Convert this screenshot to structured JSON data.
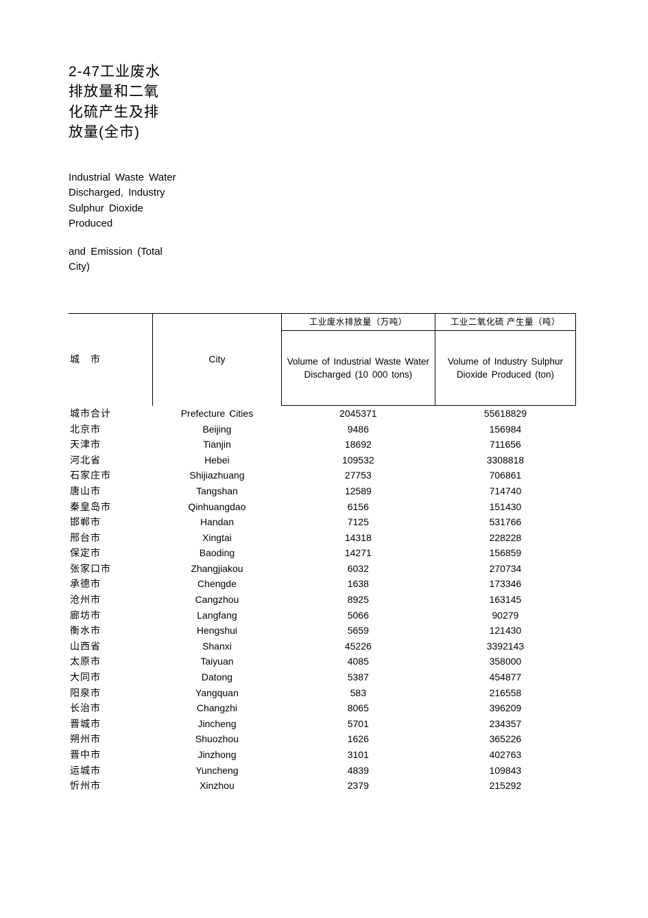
{
  "title_cn": "2-47工业废水排放量和二氧化硫产生及排放量(全市)",
  "title_en1": "Industrial Waste Water Discharged, Industry Sulphur Dioxide Produced",
  "title_en2": "and Emission (Total City)",
  "header": {
    "col1_cn": "城 市",
    "col2_en": "City",
    "col3_cn": "工业废水排放量（万吨）",
    "col3_en": "Volume of Industrial Waste Water Discharged (10 000 tons)",
    "col4_cn": "工业二氧化硫 产生量（吨）",
    "col4_en": "Volume of Industry Sulphur Dioxide Produced (ton)"
  },
  "rows": [
    {
      "cn": "城市合计",
      "en": "Prefecture Cities",
      "v1": "2045371",
      "v2": "55618829"
    },
    {
      "cn": "北京市",
      "en": "Beijing",
      "v1": "9486",
      "v2": "156984"
    },
    {
      "cn": "天津市",
      "en": "Tianjin",
      "v1": "18692",
      "v2": "711656"
    },
    {
      "cn": "河北省",
      "en": "Hebei",
      "v1": "109532",
      "v2": "3308818"
    },
    {
      "cn": "石家庄市",
      "en": "Shijiazhuang",
      "v1": "27753",
      "v2": "706861"
    },
    {
      "cn": "唐山市",
      "en": "Tangshan",
      "v1": "12589",
      "v2": "714740"
    },
    {
      "cn": "秦皇岛市",
      "en": "Qinhuangdao",
      "v1": "6156",
      "v2": "151430"
    },
    {
      "cn": "邯郸市",
      "en": "Handan",
      "v1": "7125",
      "v2": "531766"
    },
    {
      "cn": "邢台市",
      "en": "Xingtai",
      "v1": "14318",
      "v2": "228228"
    },
    {
      "cn": "保定市",
      "en": "Baoding",
      "v1": "14271",
      "v2": "156859"
    },
    {
      "cn": "张家口市",
      "en": "Zhangjiakou",
      "v1": "6032",
      "v2": "270734"
    },
    {
      "cn": "承德市",
      "en": "Chengde",
      "v1": "1638",
      "v2": "173346"
    },
    {
      "cn": "沧州市",
      "en": "Cangzhou",
      "v1": "8925",
      "v2": "163145"
    },
    {
      "cn": "廊坊市",
      "en": "Langfang",
      "v1": "5066",
      "v2": "90279"
    },
    {
      "cn": "衡水市",
      "en": "Hengshui",
      "v1": "5659",
      "v2": "121430"
    },
    {
      "cn": "山西省",
      "en": "Shanxi",
      "v1": "45226",
      "v2": "3392143"
    },
    {
      "cn": "太原市",
      "en": "Taiyuan",
      "v1": "4085",
      "v2": "358000"
    },
    {
      "cn": "大同市",
      "en": "Datong",
      "v1": "5387",
      "v2": "454877"
    },
    {
      "cn": "阳泉市",
      "en": "Yangquan",
      "v1": "583",
      "v2": "216558"
    },
    {
      "cn": "长治市",
      "en": "Changzhi",
      "v1": "8065",
      "v2": "396209"
    },
    {
      "cn": "晋城市",
      "en": "Jincheng",
      "v1": "5701",
      "v2": "234357"
    },
    {
      "cn": "朔州市",
      "en": "Shuozhou",
      "v1": "1626",
      "v2": "365226"
    },
    {
      "cn": "晋中市",
      "en": "Jinzhong",
      "v1": "3101",
      "v2": "402763"
    },
    {
      "cn": "运城市",
      "en": "Yuncheng",
      "v1": "4839",
      "v2": "109843"
    },
    {
      "cn": "忻州市",
      "en": "Xinzhou",
      "v1": "2379",
      "v2": "215292"
    }
  ]
}
